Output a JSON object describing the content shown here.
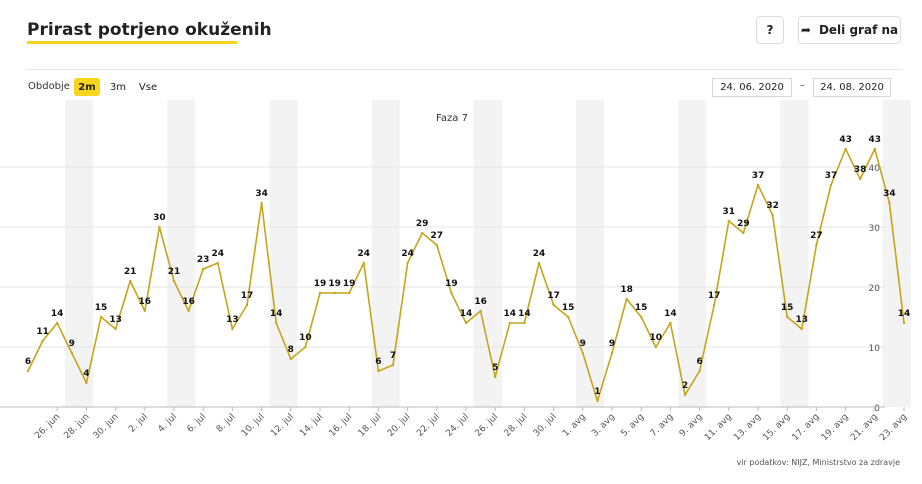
{
  "header": {
    "title": "Prirast potrjeno okuženih",
    "help_label": "?",
    "share_label": "Deli graf na",
    "share_icon": "share-arrow-icon"
  },
  "controls": {
    "period_label": "Obdobje",
    "periods": [
      "2m",
      "3m",
      "Vse"
    ],
    "selected_period": "2m",
    "date_from": "24. 06. 2020",
    "date_separator": "–",
    "date_to": "24. 08. 2020"
  },
  "footer": {
    "source": "vir podatkov: NIJZ, Ministrstvo za zdravje"
  },
  "colors": {
    "accent": "#f7d51d",
    "line": "#c4a51c",
    "weekend_band": "#f3f3f3",
    "grid": "#e6e6e6"
  },
  "chart_data": {
    "type": "line",
    "annotation": "Faza 7",
    "x": [
      "24. jun",
      "25. jun",
      "26. jun",
      "27. jun",
      "28. jun",
      "29. jun",
      "30. jun",
      "1. jul",
      "2. jul",
      "3. jul",
      "4. jul",
      "5. jul",
      "6. jul",
      "7. jul",
      "8. jul",
      "9. jul",
      "10. jul",
      "11. jul",
      "12. jul",
      "13. jul",
      "14. jul",
      "15. jul",
      "16. jul",
      "17. jul",
      "18. jul",
      "19. jul",
      "20. jul",
      "21. jul",
      "22. jul",
      "23. jul",
      "24. jul",
      "25. jul",
      "26. jul",
      "27. jul",
      "28. jul",
      "29. jul",
      "30. jul",
      "31. jul",
      "1. avg",
      "2. avg",
      "3. avg",
      "4. avg",
      "5. avg",
      "6. avg",
      "7. avg",
      "8. avg",
      "9. avg",
      "10. avg",
      "11. avg",
      "12. avg",
      "13. avg",
      "14. avg",
      "15. avg",
      "16. avg",
      "17. avg",
      "18. avg",
      "19. avg",
      "20. avg",
      "21. avg",
      "22. avg",
      "23. avg"
    ],
    "x_tick_labels": [
      "26. jun",
      "28. jun",
      "30. jun",
      "2. jul",
      "4. jul",
      "6. jul",
      "8. jul",
      "10. jul",
      "12. jul",
      "14. jul",
      "16. jul",
      "18. jul",
      "20. jul",
      "22. jul",
      "24. jul",
      "26. jul",
      "28. jul",
      "30. jul",
      "1. avg",
      "3. avg",
      "5. avg",
      "7. avg",
      "9. avg",
      "11. avg",
      "13. avg",
      "15. avg",
      "17. avg",
      "19. avg",
      "21. avg",
      "23. avg"
    ],
    "series": [
      {
        "name": "",
        "values": [
          6,
          11,
          14,
          9,
          4,
          15,
          13,
          21,
          16,
          30,
          21,
          16,
          23,
          24,
          13,
          17,
          34,
          14,
          8,
          10,
          19,
          19,
          19,
          24,
          6,
          7,
          24,
          29,
          27,
          19,
          14,
          16,
          5,
          14,
          14,
          24,
          17,
          15,
          9,
          1,
          9,
          18,
          15,
          10,
          14,
          2,
          6,
          17,
          31,
          29,
          37,
          32,
          15,
          13,
          27,
          37,
          43,
          38,
          43,
          34,
          14
        ]
      }
    ],
    "yticks": [
      0,
      10,
      20,
      30,
      40
    ],
    "ylim": [
      0,
      48
    ],
    "grid": true,
    "weekend_bands": true
  }
}
